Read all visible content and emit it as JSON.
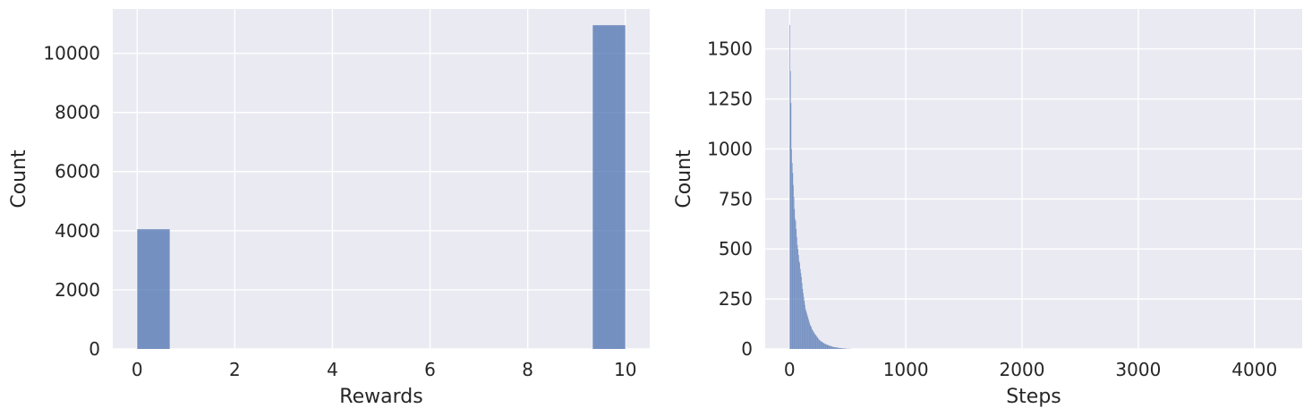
{
  "chart_data": [
    {
      "type": "bar",
      "xlabel": "Rewards",
      "ylabel": "Count",
      "xlim": [
        -0.5,
        10.5
      ],
      "ylim": [
        0,
        11500
      ],
      "xticks": [
        0,
        2,
        4,
        6,
        8,
        10
      ],
      "yticks": [
        0,
        2000,
        4000,
        6000,
        8000,
        10000
      ],
      "grid": true,
      "bins": [
        {
          "x0": 0.0,
          "x1": 0.667,
          "count": 4050
        },
        {
          "x0": 9.333,
          "x1": 10.0,
          "count": 10950
        }
      ],
      "colors": {
        "bar": "#4c72b0",
        "background": "#eaeaf2",
        "grid": "#ffffff"
      }
    },
    {
      "type": "bar",
      "xlabel": "Steps",
      "ylabel": "Count",
      "xlim": [
        -210,
        4410
      ],
      "ylim": [
        0,
        1700
      ],
      "xticks": [
        0,
        1000,
        2000,
        3000,
        4000
      ],
      "yticks": [
        0,
        250,
        500,
        750,
        1000,
        1250,
        1500
      ],
      "grid": true,
      "bin_width": 5,
      "bins_start": 0,
      "counts": [
        1620,
        1390,
        1230,
        1000,
        930,
        880,
        820,
        760,
        700,
        650,
        640,
        600,
        560,
        520,
        500,
        470,
        440,
        430,
        400,
        380,
        360,
        330,
        300,
        280,
        260,
        240,
        220,
        200,
        190,
        180,
        170,
        160,
        150,
        140,
        130,
        120,
        115,
        110,
        100,
        95,
        90,
        85,
        80,
        75,
        72,
        68,
        64,
        60,
        56,
        52,
        48,
        45,
        42,
        40,
        38,
        36,
        34,
        32,
        30,
        28,
        26,
        25,
        24,
        22,
        21,
        20,
        19,
        18,
        17,
        16,
        15,
        14,
        13,
        12,
        11,
        10,
        10,
        9,
        9,
        8,
        8,
        7,
        7,
        6,
        6,
        5,
        5,
        5,
        4,
        4,
        4,
        3,
        3,
        3,
        2,
        2,
        2,
        2,
        1,
        1,
        1,
        1,
        1,
        1,
        1
      ],
      "colors": {
        "bar": "#4c72b0",
        "background": "#eaeaf2",
        "grid": "#ffffff"
      }
    }
  ]
}
